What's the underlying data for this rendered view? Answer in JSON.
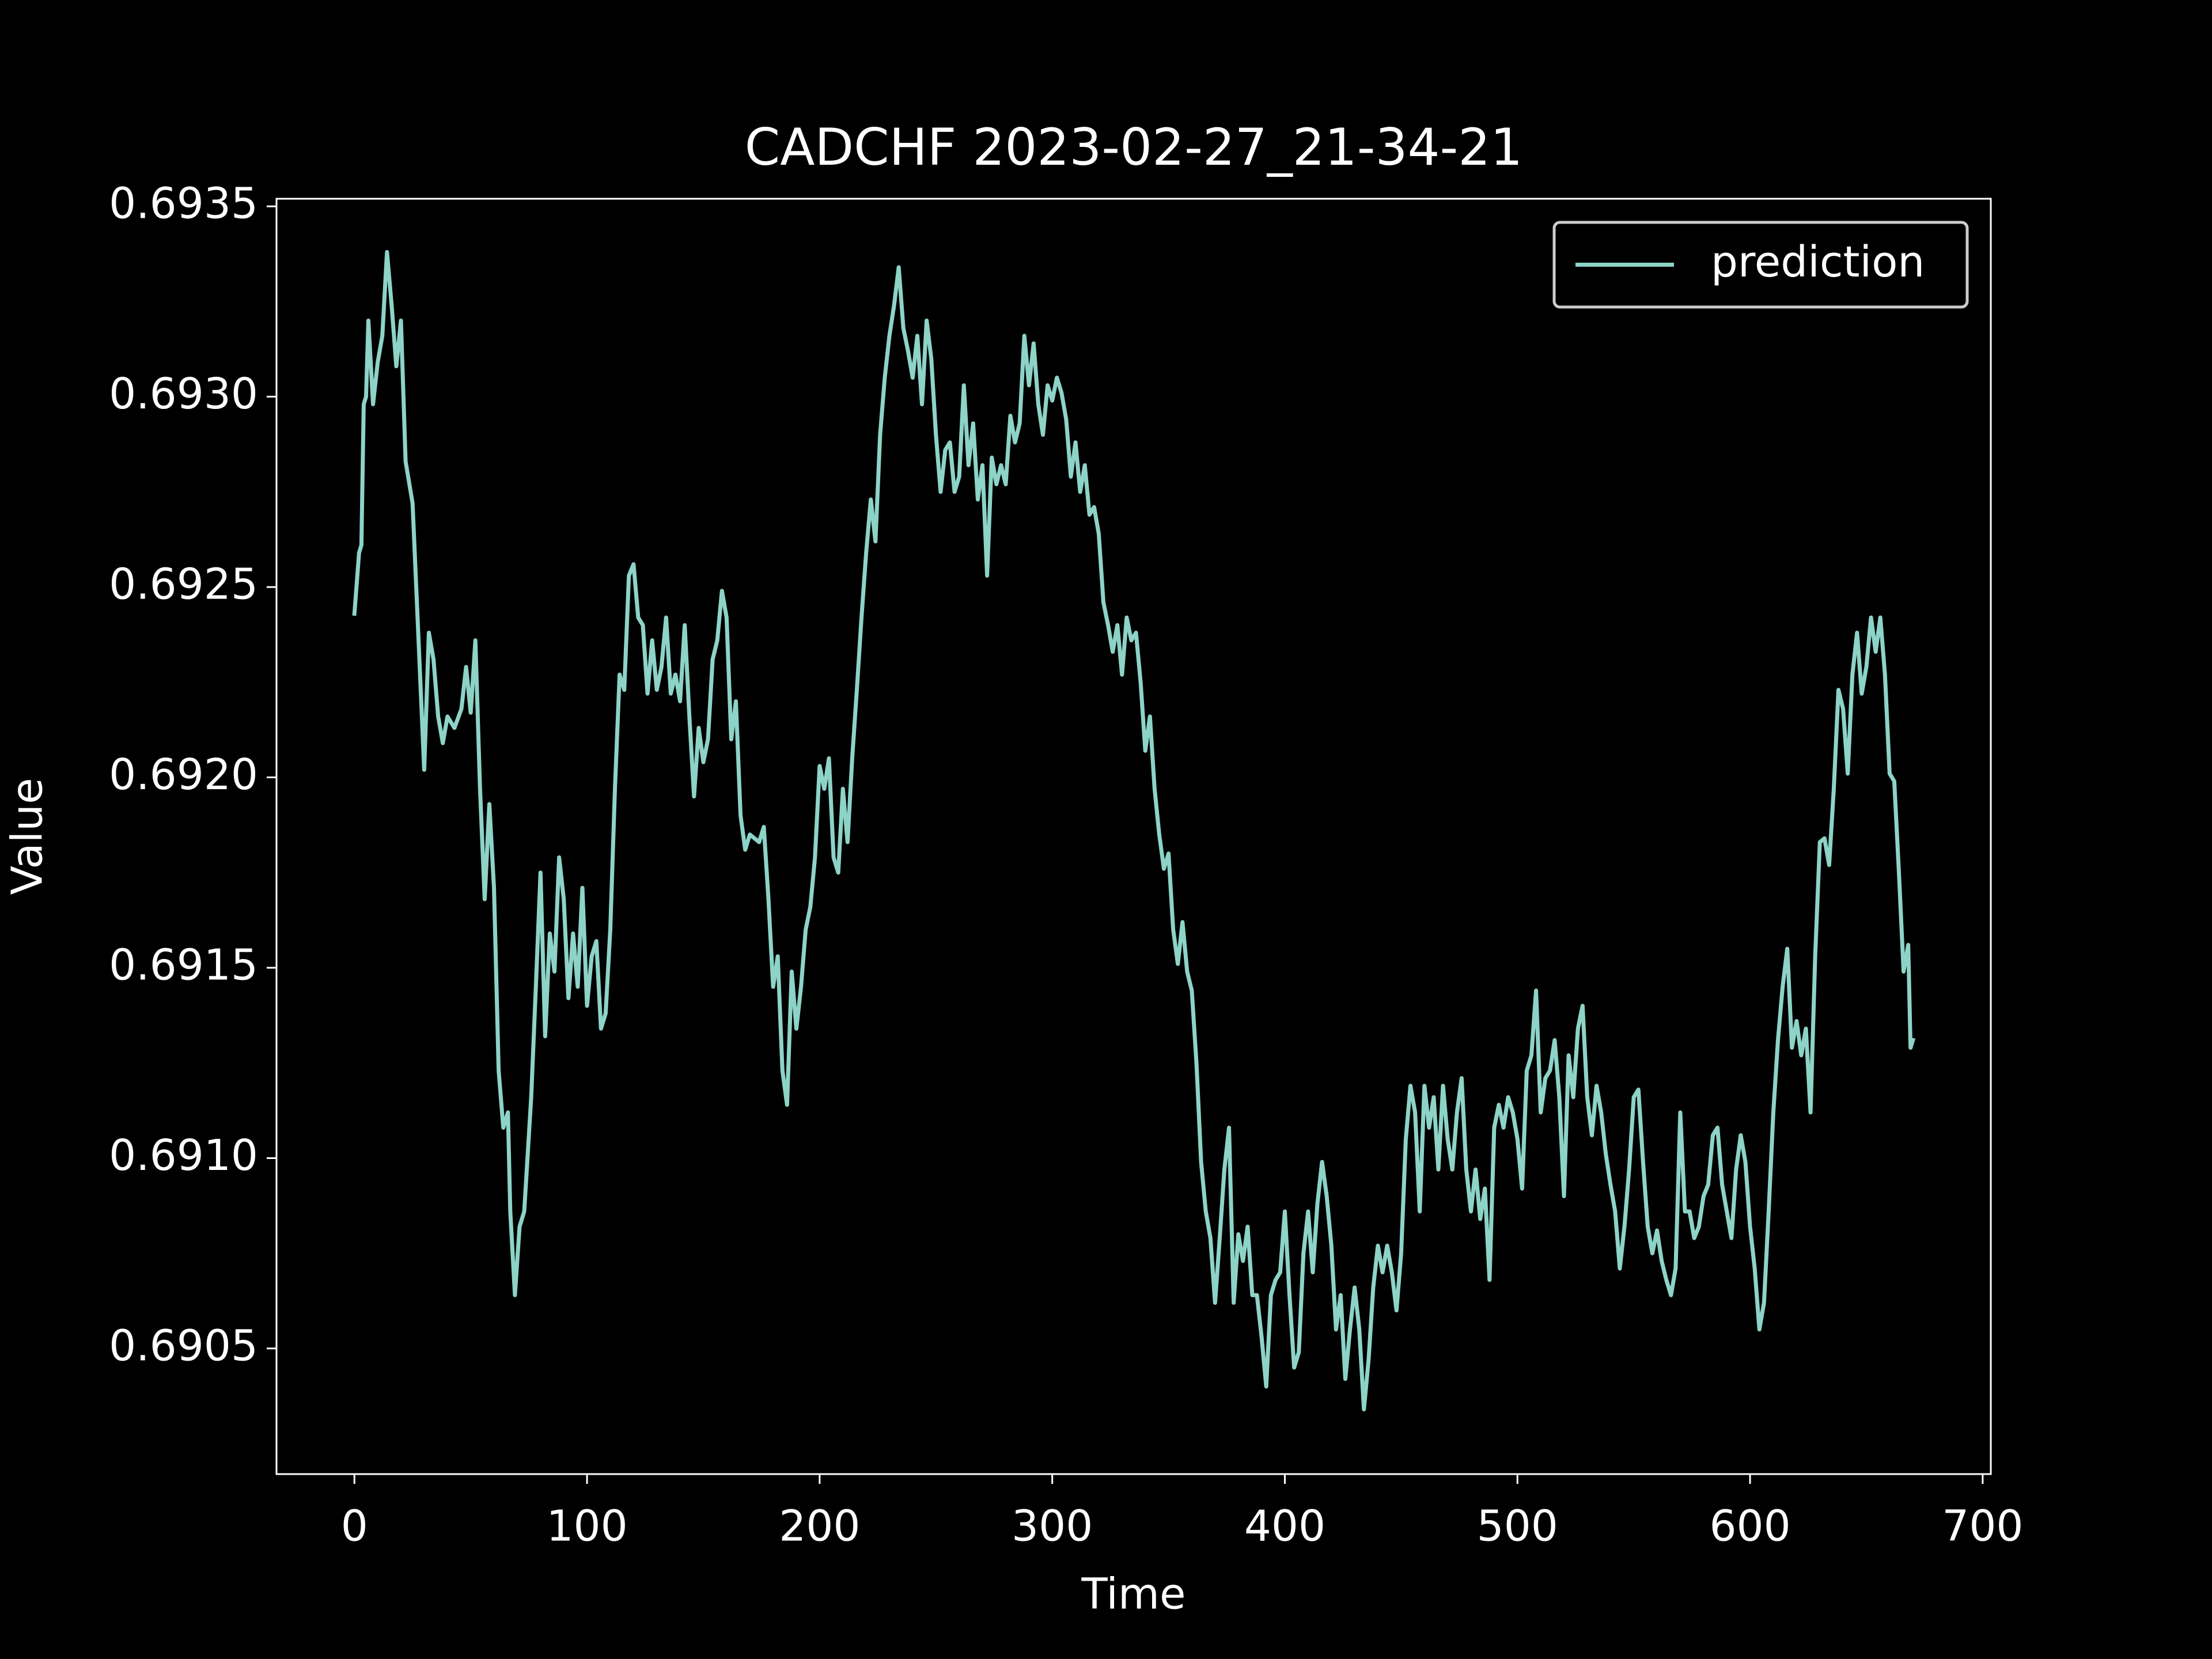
{
  "chart_data": {
    "type": "line",
    "title": "CADCHF 2023-02-27_21-34-21",
    "x_label": "Time",
    "y_label": "Value",
    "x": [
      0,
      2,
      3,
      4,
      5,
      6,
      8,
      10,
      12,
      14,
      16,
      18,
      20,
      22,
      25,
      27,
      29,
      30,
      32,
      34,
      36,
      38,
      40,
      43,
      46,
      48,
      50,
      52,
      54,
      56,
      58,
      60,
      62,
      64,
      66,
      67,
      69,
      71,
      73,
      76,
      78,
      80,
      82,
      84,
      86,
      88,
      90,
      92,
      94,
      96,
      98,
      100,
      102,
      104,
      106,
      108,
      110,
      112,
      114,
      116,
      118,
      120,
      122,
      124,
      126,
      128,
      130,
      132,
      134,
      136,
      138,
      140,
      142,
      144,
      146,
      148,
      150,
      152,
      154,
      156,
      158,
      160,
      162,
      164,
      166,
      168,
      170,
      172,
      174,
      176,
      178,
      180,
      182,
      184,
      186,
      188,
      190,
      192,
      194,
      196,
      198,
      200,
      202,
      204,
      206,
      208,
      210,
      212,
      214,
      216,
      218,
      220,
      222,
      224,
      226,
      228,
      230,
      232,
      234,
      236,
      238,
      240,
      242,
      244,
      246,
      248,
      250,
      252,
      254,
      256,
      258,
      260,
      262,
      264,
      266,
      268,
      270,
      272,
      274,
      276,
      278,
      280,
      282,
      284,
      286,
      288,
      290,
      292,
      294,
      296,
      298,
      300,
      302,
      304,
      306,
      308,
      310,
      312,
      314,
      316,
      318,
      320,
      322,
      324,
      326,
      328,
      330,
      332,
      334,
      336,
      338,
      340,
      342,
      344,
      346,
      348,
      350,
      352,
      354,
      356,
      358,
      360,
      362,
      364,
      366,
      368,
      370,
      372,
      374,
      376,
      378,
      380,
      382,
      384,
      386,
      388,
      390,
      392,
      394,
      396,
      398,
      400,
      402,
      404,
      406,
      408,
      410,
      412,
      414,
      416,
      418,
      420,
      422,
      424,
      426,
      428,
      430,
      432,
      434,
      436,
      438,
      440,
      442,
      444,
      446,
      448,
      450,
      452,
      454,
      456,
      458,
      460,
      462,
      464,
      466,
      468,
      470,
      472,
      474,
      476,
      478,
      480,
      482,
      484,
      486,
      488,
      490,
      492,
      494,
      496,
      498,
      500,
      502,
      504,
      506,
      508,
      510,
      512,
      514,
      516,
      518,
      520,
      522,
      524,
      526,
      528,
      530,
      532,
      534,
      536,
      538,
      540,
      542,
      544,
      546,
      548,
      550,
      552,
      554,
      556,
      558,
      560,
      562,
      564,
      566,
      568,
      570,
      572,
      574,
      576,
      578,
      580,
      582,
      584,
      586,
      588,
      590,
      592,
      594,
      596,
      598,
      600,
      602,
      604,
      606,
      608,
      610,
      612,
      614,
      616,
      618,
      620,
      622,
      624,
      626,
      628,
      630,
      632,
      634,
      636,
      638,
      640,
      642,
      644,
      646,
      648,
      650,
      652,
      654,
      656,
      658,
      660,
      662,
      664,
      666,
      668,
      669,
      670
    ],
    "series": [
      {
        "name": "prediction",
        "color": "#8dd3c7",
        "values": [
          0.69243,
          0.69259,
          0.69261,
          0.69298,
          0.693,
          0.6932,
          0.69298,
          0.69309,
          0.69316,
          0.69338,
          0.69324,
          0.69308,
          0.6932,
          0.69283,
          0.69272,
          0.69244,
          0.69216,
          0.69202,
          0.69238,
          0.69231,
          0.69216,
          0.69209,
          0.69216,
          0.69213,
          0.69218,
          0.69229,
          0.69217,
          0.69236,
          0.69197,
          0.69168,
          0.69193,
          0.69171,
          0.69123,
          0.69108,
          0.69112,
          0.69086,
          0.69064,
          0.69082,
          0.69086,
          0.69116,
          0.69145,
          0.69175,
          0.69132,
          0.69159,
          0.69149,
          0.69179,
          0.69168,
          0.69142,
          0.69159,
          0.69145,
          0.69171,
          0.6914,
          0.69153,
          0.69157,
          0.69134,
          0.69138,
          0.6916,
          0.69197,
          0.69227,
          0.69223,
          0.69253,
          0.69256,
          0.69242,
          0.6924,
          0.69222,
          0.69236,
          0.69223,
          0.69229,
          0.69242,
          0.69222,
          0.69227,
          0.6922,
          0.6924,
          0.69216,
          0.69195,
          0.69213,
          0.69204,
          0.6921,
          0.69231,
          0.69236,
          0.69249,
          0.69242,
          0.6921,
          0.6922,
          0.6919,
          0.69181,
          0.69185,
          0.69184,
          0.69183,
          0.69187,
          0.69168,
          0.69145,
          0.69153,
          0.69123,
          0.69114,
          0.69149,
          0.69134,
          0.69145,
          0.6916,
          0.69166,
          0.69179,
          0.69203,
          0.69197,
          0.69205,
          0.69179,
          0.69175,
          0.69197,
          0.69183,
          0.69205,
          0.69223,
          0.69242,
          0.69259,
          0.69273,
          0.69262,
          0.6929,
          0.69305,
          0.69316,
          0.69324,
          0.69334,
          0.69318,
          0.69312,
          0.69305,
          0.69316,
          0.69298,
          0.6932,
          0.6931,
          0.6929,
          0.69275,
          0.69286,
          0.69288,
          0.69275,
          0.69279,
          0.69303,
          0.69282,
          0.69293,
          0.69273,
          0.69282,
          0.69253,
          0.69284,
          0.69277,
          0.69282,
          0.69277,
          0.69295,
          0.69288,
          0.69293,
          0.69316,
          0.69303,
          0.69314,
          0.69298,
          0.6929,
          0.69303,
          0.69299,
          0.69305,
          0.69301,
          0.69294,
          0.69279,
          0.69288,
          0.69275,
          0.69282,
          0.69269,
          0.69271,
          0.69264,
          0.69246,
          0.6924,
          0.69233,
          0.6924,
          0.69227,
          0.69242,
          0.69236,
          0.69238,
          0.69225,
          0.69207,
          0.69216,
          0.69197,
          0.69185,
          0.69176,
          0.6918,
          0.6916,
          0.69151,
          0.69162,
          0.69149,
          0.69144,
          0.69125,
          0.69099,
          0.69086,
          0.69079,
          0.69062,
          0.69079,
          0.69097,
          0.69108,
          0.69062,
          0.6908,
          0.69073,
          0.69082,
          0.69064,
          0.69064,
          0.69053,
          0.6904,
          0.69064,
          0.69068,
          0.6907,
          0.69086,
          0.69064,
          0.69045,
          0.69049,
          0.69075,
          0.69086,
          0.6907,
          0.69088,
          0.69099,
          0.6909,
          0.69077,
          0.69055,
          0.69064,
          0.69042,
          0.69055,
          0.69066,
          0.69055,
          0.69034,
          0.69047,
          0.69066,
          0.69077,
          0.6907,
          0.69077,
          0.6907,
          0.6906,
          0.69075,
          0.69105,
          0.69119,
          0.69112,
          0.69086,
          0.69119,
          0.69108,
          0.69116,
          0.69097,
          0.69119,
          0.69105,
          0.69097,
          0.69112,
          0.69121,
          0.69097,
          0.69086,
          0.69097,
          0.69084,
          0.69092,
          0.69068,
          0.69108,
          0.69114,
          0.69108,
          0.69116,
          0.69112,
          0.69105,
          0.69092,
          0.69123,
          0.69127,
          0.69144,
          0.69112,
          0.69121,
          0.69123,
          0.69131,
          0.69116,
          0.6909,
          0.69127,
          0.69116,
          0.69134,
          0.6914,
          0.69116,
          0.69106,
          0.69119,
          0.69112,
          0.69101,
          0.69093,
          0.69086,
          0.69071,
          0.69082,
          0.69097,
          0.69116,
          0.69118,
          0.69099,
          0.69082,
          0.69075,
          0.69081,
          0.69073,
          0.69068,
          0.69064,
          0.69071,
          0.69112,
          0.69086,
          0.69086,
          0.69079,
          0.69082,
          0.6909,
          0.69093,
          0.69106,
          0.69108,
          0.69093,
          0.69086,
          0.69079,
          0.69097,
          0.69106,
          0.69099,
          0.69082,
          0.69071,
          0.69055,
          0.69062,
          0.69086,
          0.69112,
          0.69131,
          0.69145,
          0.69155,
          0.69129,
          0.69136,
          0.69127,
          0.69134,
          0.69112,
          0.69153,
          0.69183,
          0.69184,
          0.69177,
          0.69197,
          0.69223,
          0.69218,
          0.69201,
          0.69227,
          0.69238,
          0.69222,
          0.69229,
          0.69242,
          0.69233,
          0.69242,
          0.69227,
          0.69201,
          0.69199,
          0.69175,
          0.69149,
          0.69156,
          0.69129,
          0.69131
        ]
      }
    ],
    "xlim": [
      -33.5,
      703.5
    ],
    "xticks": [
      0,
      100,
      200,
      300,
      400,
      500,
      600,
      700
    ],
    "ylim": [
      0.69017,
      0.69352
    ],
    "yticks": [
      0.6905,
      {
        "value": 0.691,
        "label": "0.6910"
      },
      0.6915,
      {
        "value": 0.692,
        "label": "0.6920"
      },
      0.6925,
      {
        "value": 0.693,
        "label": "0.6930"
      },
      0.6935
    ],
    "grid": false,
    "legend": "upper right"
  }
}
